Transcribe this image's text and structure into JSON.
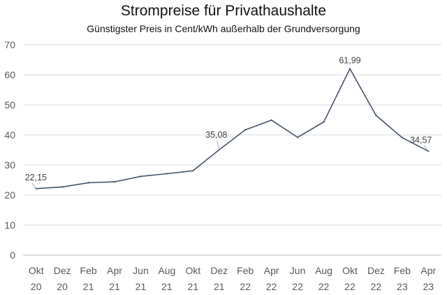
{
  "chart_data": {
    "type": "line",
    "title": "Strompreise für Privathaushalte",
    "subtitle": "Günstigster Preis in Cent/kWh außerhalb der Grundversorgung",
    "xlabel": "",
    "ylabel": "",
    "ylim": [
      0,
      70
    ],
    "yticks": [
      0,
      10,
      20,
      30,
      40,
      50,
      60,
      70
    ],
    "grid": true,
    "legend": "none",
    "line_color": "#44546A",
    "x_tick_labels": [
      {
        "month": "Okt",
        "year": "20"
      },
      {
        "month": "Dez",
        "year": "20"
      },
      {
        "month": "Feb",
        "year": "21"
      },
      {
        "month": "Apr",
        "year": "21"
      },
      {
        "month": "Jun",
        "year": "21"
      },
      {
        "month": "Aug",
        "year": "21"
      },
      {
        "month": "Okt",
        "year": "21"
      },
      {
        "month": "Dez",
        "year": "21"
      },
      {
        "month": "Feb",
        "year": "22"
      },
      {
        "month": "Apr",
        "year": "22"
      },
      {
        "month": "Jun",
        "year": "22"
      },
      {
        "month": "Aug",
        "year": "22"
      },
      {
        "month": "Okt",
        "year": "22"
      },
      {
        "month": "Dez",
        "year": "22"
      },
      {
        "month": "Feb",
        "year": "23"
      },
      {
        "month": "Apr",
        "year": "23"
      }
    ],
    "series": [
      {
        "values": [
          22.15,
          22.7,
          24.1,
          24.4,
          26.2,
          27.1,
          28.1,
          35.08,
          41.7,
          44.9,
          39.2,
          44.3,
          61.99,
          46.5,
          39.1,
          34.57
        ]
      }
    ],
    "data_labels": [
      {
        "index": 0,
        "text": "22,15"
      },
      {
        "index": 7,
        "text": "35,08"
      },
      {
        "index": 12,
        "text": "61,99"
      },
      {
        "index": 15,
        "text": "34,57"
      }
    ]
  }
}
